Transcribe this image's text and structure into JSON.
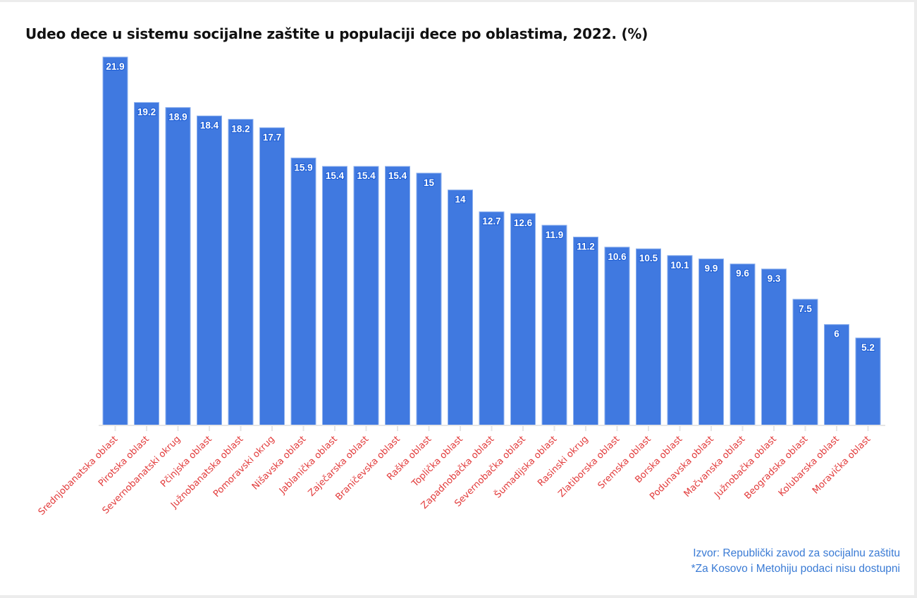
{
  "chart_data": {
    "type": "bar",
    "title": "Udeo dece u sistemu socijalne zaštite u populaciji dece po oblastima, 2022. (%)",
    "xlabel": "",
    "ylabel": "",
    "ylim": [
      0,
      21.9
    ],
    "grid": false,
    "legend": "none",
    "bar_color": "#4079e0",
    "label_color": "#e23a3a",
    "categories": [
      "Srednjobanatska oblast",
      "Pirotska oblast",
      "Severnobanatski okrug",
      "Pčinjska oblast",
      "Južnobanatska oblast",
      "Pomoravski okrug",
      "Nišavska oblast",
      "Jablanička oblast",
      "Zaječarska oblast",
      "Braničevska oblast",
      "Raška oblast",
      "Toplička oblast",
      "Zapadnobačka oblast",
      "Severnobačka oblast",
      "Šumadijska oblast",
      "Rasinski okrug",
      "Zlatiborska oblast",
      "Sremska oblast",
      "Borska oblast",
      "Podunavska oblast",
      "Mačvanska oblast",
      "Južnobačka oblast",
      "Beogradska oblast",
      "Kolubarska oblast",
      "Moravička oblast"
    ],
    "values": [
      21.9,
      19.2,
      18.9,
      18.4,
      18.2,
      17.7,
      15.9,
      15.4,
      15.4,
      15.4,
      15,
      14,
      12.7,
      12.6,
      11.9,
      11.2,
      10.6,
      10.5,
      10.1,
      9.9,
      9.6,
      9.3,
      7.5,
      6,
      5.2
    ],
    "data_labels": [
      "21.9",
      "19.2",
      "18.9",
      "18.4",
      "18.2",
      "17.7",
      "15.9",
      "15.4",
      "15.4",
      "15.4",
      "15",
      "14",
      "12.7",
      "12.6",
      "11.9",
      "11.2",
      "10.6",
      "10.5",
      "10.1",
      "9.9",
      "9.6",
      "9.3",
      "7.5",
      "6",
      "5.2"
    ]
  },
  "footer": {
    "source": "Izvor: Republički zavod za socijalnu zaštitu",
    "note": "*Za Kosovo i Metohiju podaci nisu dostupni"
  }
}
